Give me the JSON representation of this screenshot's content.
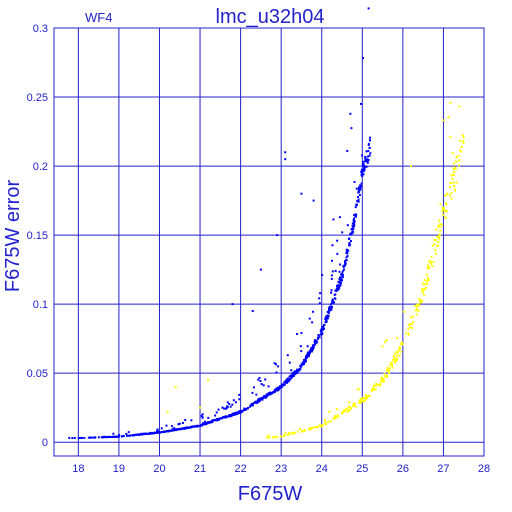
{
  "chart_data": {
    "type": "scatter",
    "title": "lmc_u32h04",
    "chip_label": "WF4",
    "xlabel": "F675W",
    "ylabel": "F675W error",
    "xlim": [
      17.4,
      28.0
    ],
    "ylim": [
      -0.01,
      0.3
    ],
    "x_ticks": [
      18,
      19,
      20,
      21,
      22,
      23,
      24,
      25,
      26,
      27,
      28
    ],
    "y_ticks": [
      0,
      0.05,
      0.1,
      0.15,
      0.2,
      0.25,
      0.3
    ],
    "y_tick_labels": [
      "0",
      "0.05",
      "0.1",
      "0.15",
      "0.2",
      "0.25",
      "0.3"
    ],
    "grid": true,
    "colors": {
      "axes": "#2222cc",
      "grid": "#2222cc",
      "blue_series": "#0000ff",
      "yellow_series": "#ffff00"
    },
    "series": [
      {
        "color": "blue",
        "trend_points": [
          {
            "x": 17.6,
            "y": 0.003
          },
          {
            "x": 18.0,
            "y": 0.003
          },
          {
            "x": 19.0,
            "y": 0.004
          },
          {
            "x": 20.0,
            "y": 0.007
          },
          {
            "x": 21.0,
            "y": 0.012
          },
          {
            "x": 22.0,
            "y": 0.022
          },
          {
            "x": 23.0,
            "y": 0.04
          },
          {
            "x": 23.5,
            "y": 0.055
          },
          {
            "x": 24.0,
            "y": 0.08
          },
          {
            "x": 24.5,
            "y": 0.12
          },
          {
            "x": 24.8,
            "y": 0.16
          },
          {
            "x": 25.0,
            "y": 0.195
          },
          {
            "x": 25.2,
            "y": 0.215
          }
        ],
        "scatter_outliers": [
          {
            "x": 23.1,
            "y": 0.21
          },
          {
            "x": 23.1,
            "y": 0.205
          },
          {
            "x": 22.5,
            "y": 0.125
          },
          {
            "x": 23.5,
            "y": 0.18
          },
          {
            "x": 22.9,
            "y": 0.15
          },
          {
            "x": 21.8,
            "y": 0.1
          },
          {
            "x": 22.3,
            "y": 0.095
          },
          {
            "x": 23.8,
            "y": 0.175
          }
        ]
      },
      {
        "color": "yellow",
        "trend_points": [
          {
            "x": 22.4,
            "y": 0.003
          },
          {
            "x": 23.0,
            "y": 0.004
          },
          {
            "x": 24.0,
            "y": 0.012
          },
          {
            "x": 25.0,
            "y": 0.03
          },
          {
            "x": 25.5,
            "y": 0.045
          },
          {
            "x": 26.0,
            "y": 0.07
          },
          {
            "x": 26.5,
            "y": 0.11
          },
          {
            "x": 27.0,
            "y": 0.165
          },
          {
            "x": 27.5,
            "y": 0.215
          }
        ],
        "scatter_outliers": [
          {
            "x": 20.4,
            "y": 0.04
          },
          {
            "x": 21.2,
            "y": 0.045
          },
          {
            "x": 21.0,
            "y": 0.025
          },
          {
            "x": 20.2,
            "y": 0.022
          },
          {
            "x": 26.2,
            "y": 0.2
          },
          {
            "x": 27.1,
            "y": 0.18
          }
        ]
      }
    ]
  }
}
